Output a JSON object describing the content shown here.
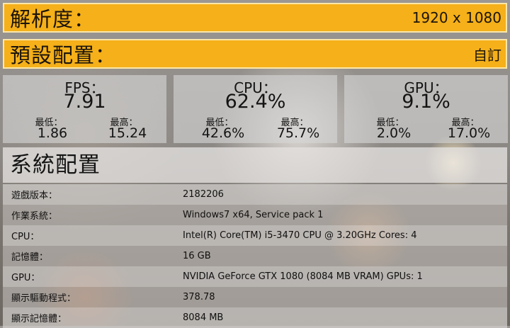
{
  "resolution": {
    "label": "解析度：",
    "value": "1920 x 1080"
  },
  "preset": {
    "label": "預設配置：",
    "value": "自訂"
  },
  "stats": [
    {
      "title": "FPS：",
      "value": "7.91",
      "min_label": "最低：",
      "min": "1.86",
      "max_label": "最高：",
      "max": "15.24"
    },
    {
      "title": "CPU：",
      "value": "62.4%",
      "min_label": "最低：",
      "min": "42.6%",
      "max_label": "最高：",
      "max": "75.7%"
    },
    {
      "title": "GPU：",
      "value": "9.1%",
      "min_label": "最低：",
      "min": "2.0%",
      "max_label": "最高：",
      "max": "17.0%"
    }
  ],
  "system": {
    "header": "系統配置",
    "rows": [
      {
        "key": "遊戲版本：",
        "value": "2182206"
      },
      {
        "key": "作業系統：",
        "value": "Windows7 x64, Service pack 1"
      },
      {
        "key": "CPU：",
        "value": "Intel(R) Core(TM) i5-3470 CPU @ 3.20GHz Cores: 4"
      },
      {
        "key": "記憶體：",
        "value": "16 GB"
      },
      {
        "key": "GPU：",
        "value": "NVIDIA GeForce GTX 1080 (8084 MB VRAM) GPUs: 1"
      },
      {
        "key": "顯示驅動程式：",
        "value": "378.78"
      },
      {
        "key": "顯示記憶體：",
        "value": "8084 MB"
      }
    ]
  },
  "colors": {
    "accent": "#f5b01a",
    "accent_border": "#fde7a8"
  }
}
